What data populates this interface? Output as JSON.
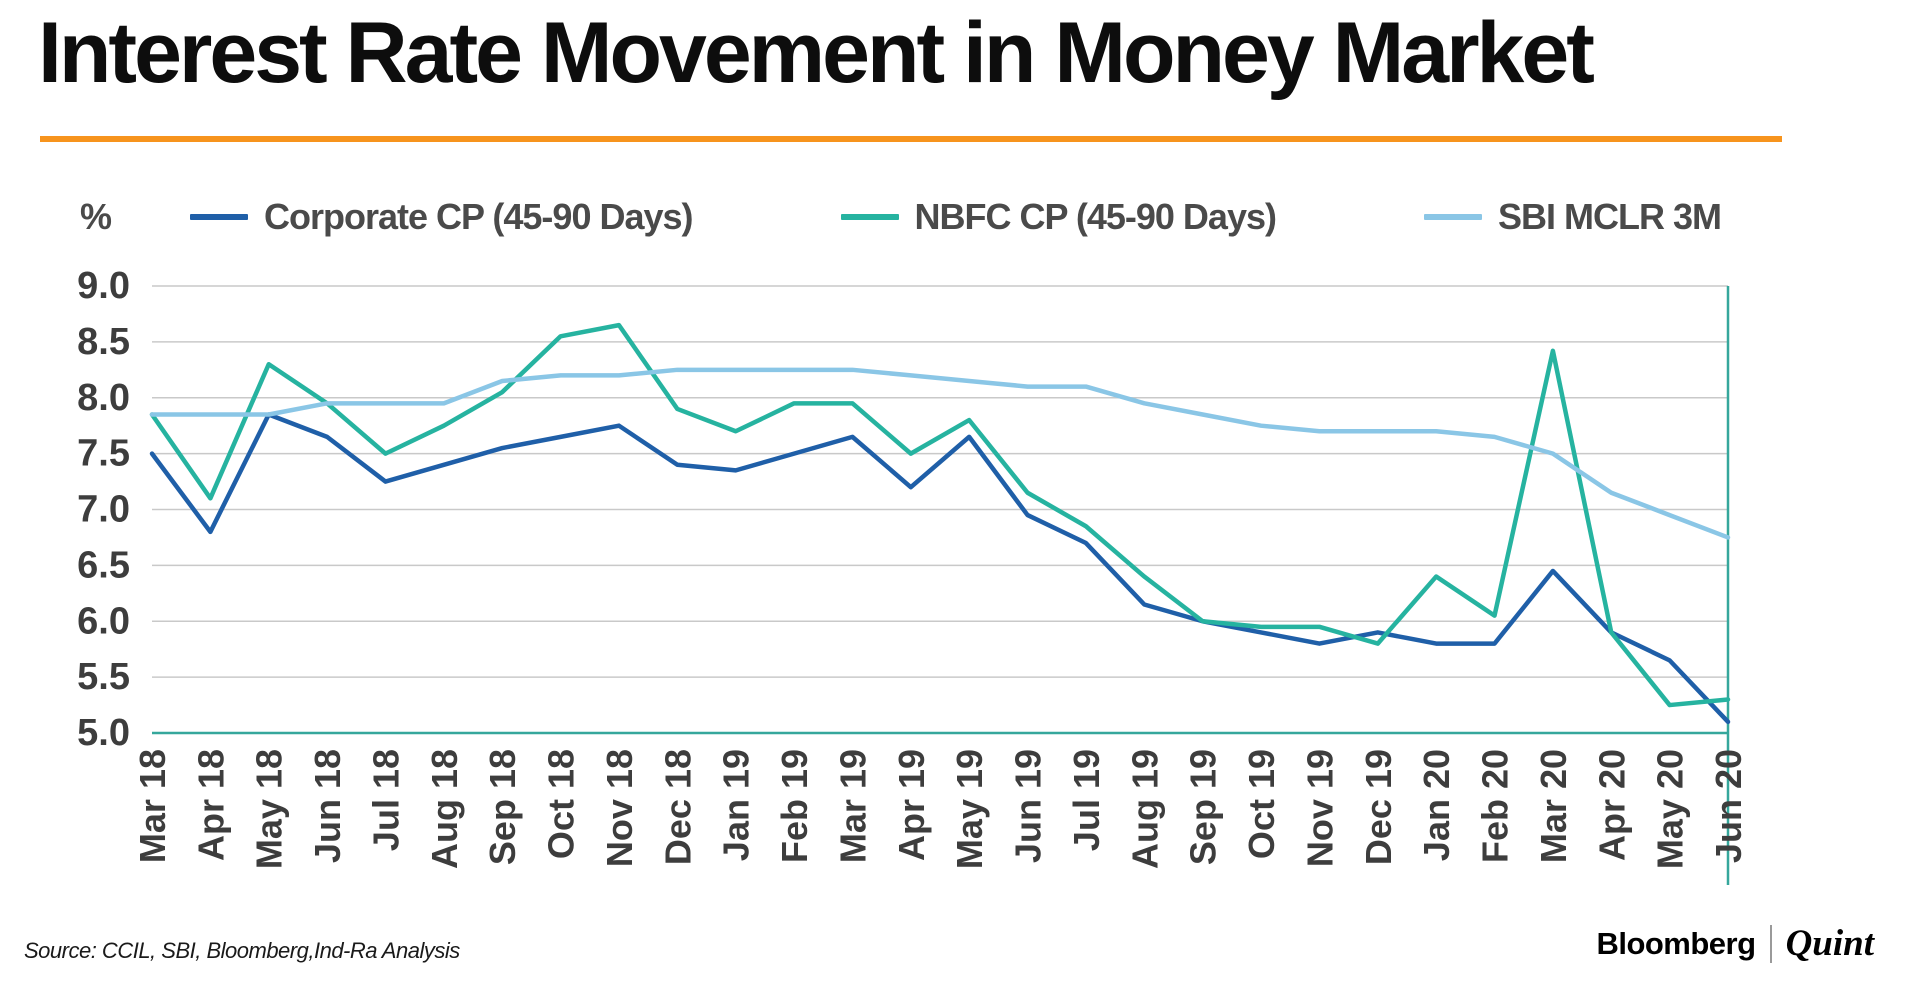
{
  "header": {
    "title": "Interest Rate Movement in Money Market",
    "underline_color": "#f7941d"
  },
  "chart_data": {
    "type": "line",
    "title": "Interest Rate Movement in Money Market",
    "ylabel": "%",
    "xlabel": "",
    "ylim": [
      5.0,
      9.0
    ],
    "ytick_step": 0.5,
    "grid": "horizontal",
    "legend_position": "top",
    "gridline_color": "#c9c9c9",
    "axis_color": "#35a79c",
    "tick_label_color": "#3d3d3d",
    "categories": [
      "Mar 18",
      "Apr 18",
      "May 18",
      "Jun 18",
      "Jul 18",
      "Aug 18",
      "Sep 18",
      "Oct 18",
      "Nov 18",
      "Dec 18",
      "Jan 19",
      "Feb 19",
      "Mar 19",
      "Apr 19",
      "May 19",
      "Jun 19",
      "Jul 19",
      "Aug 19",
      "Sep 19",
      "Oct 19",
      "Nov 19",
      "Dec 19",
      "Jan 20",
      "Feb 20",
      "Mar 20",
      "Apr 20",
      "May 20",
      "Jun 20"
    ],
    "series": [
      {
        "name": "Corporate CP (45-90 Days)",
        "color": "#1f5fa8",
        "values": [
          7.5,
          6.8,
          7.85,
          7.65,
          7.25,
          7.4,
          7.55,
          7.65,
          7.75,
          7.4,
          7.35,
          7.5,
          7.65,
          7.2,
          7.65,
          6.95,
          6.7,
          6.15,
          6.0,
          5.9,
          5.8,
          5.9,
          5.8,
          5.8,
          6.45,
          5.9,
          5.65,
          5.1
        ]
      },
      {
        "name": "NBFC CP (45-90 Days)",
        "color": "#26b3a0",
        "values": [
          7.85,
          7.1,
          8.3,
          7.95,
          7.5,
          7.75,
          8.05,
          8.55,
          8.65,
          7.9,
          7.7,
          7.95,
          7.95,
          7.5,
          7.8,
          7.15,
          6.85,
          6.4,
          6.0,
          5.95,
          5.95,
          5.8,
          6.4,
          6.05,
          8.42,
          5.9,
          5.25,
          5.3
        ]
      },
      {
        "name": "SBI MCLR 3M",
        "color": "#8ac6e6",
        "values": [
          7.85,
          7.85,
          7.85,
          7.95,
          7.95,
          7.95,
          8.15,
          8.2,
          8.2,
          8.25,
          8.25,
          8.25,
          8.25,
          8.2,
          8.15,
          8.1,
          8.1,
          7.95,
          7.85,
          7.75,
          7.7,
          7.7,
          7.7,
          7.65,
          7.5,
          7.15,
          6.95,
          6.75
        ]
      }
    ]
  },
  "footer": {
    "source": "Source: CCIL, SBI, Bloomberg,Ind-Ra Analysis",
    "brand": {
      "left": "Bloomberg",
      "right": "Quint"
    }
  }
}
